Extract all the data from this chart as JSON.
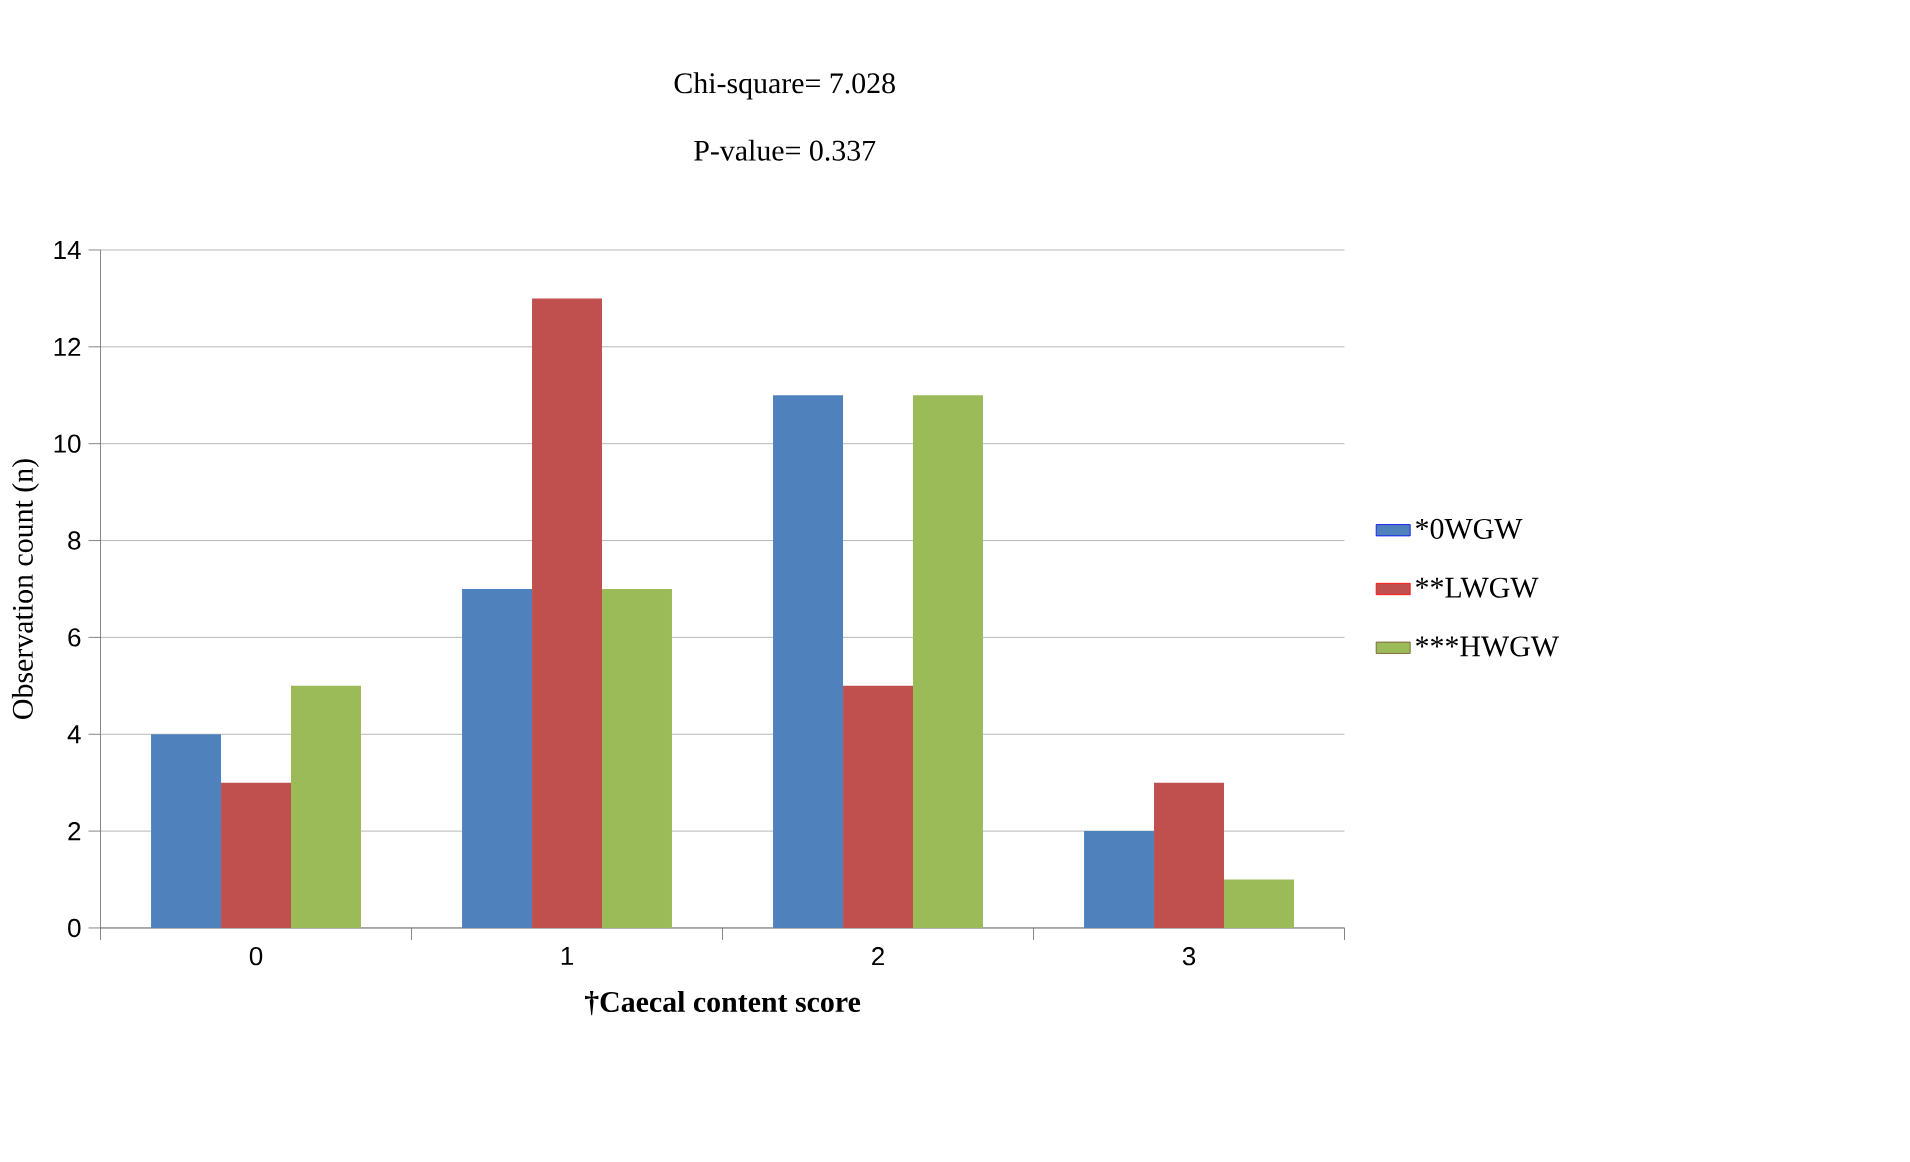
{
  "chart_data": {
    "type": "bar",
    "xlabel": "†Caecal content score",
    "ylabel": "Observation count (n)",
    "annotations": [
      "Chi-square= 7.028",
      "P-value= 0.337"
    ],
    "categories": [
      "0",
      "1",
      "2",
      "3"
    ],
    "series": [
      {
        "name": "*0WGW",
        "color": "#4f81bd",
        "values": [
          4,
          7,
          11,
          2
        ]
      },
      {
        "name": "**LWGW",
        "color": "#c0504d",
        "values": [
          3,
          13,
          5,
          3
        ]
      },
      {
        "name": "***HWGW",
        "color": "#9bbb59",
        "values": [
          5,
          7,
          11,
          1
        ]
      }
    ],
    "ylim": [
      0,
      14
    ],
    "yticks": [
      0,
      2,
      4,
      6,
      8,
      10,
      12,
      14
    ],
    "grid": "y",
    "legend": "right"
  }
}
